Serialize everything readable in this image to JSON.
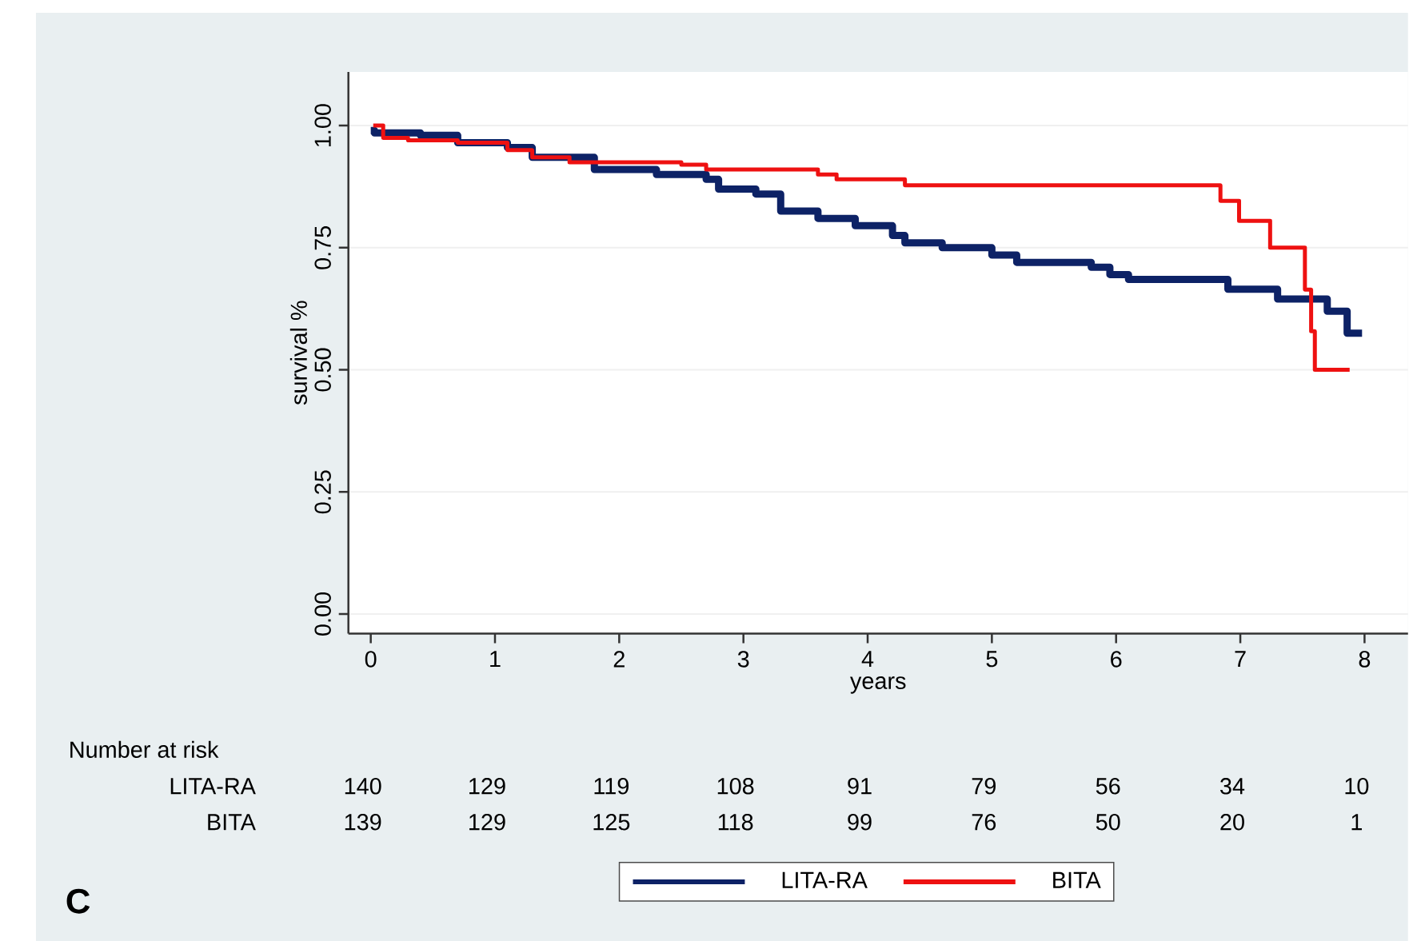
{
  "chart_data": {
    "type": "step",
    "xlabel": "years",
    "ylabel": "survival %",
    "xlim": [
      -0.18,
      8.35
    ],
    "ylim": [
      -0.04,
      1.11
    ],
    "xticks": [
      0,
      1,
      2,
      3,
      4,
      5,
      6,
      7,
      8
    ],
    "yticks": [
      {
        "value": 0,
        "label": "0.00"
      },
      {
        "value": 0.25,
        "label": "0.25"
      },
      {
        "value": 0.5,
        "label": "0.50"
      },
      {
        "value": 0.75,
        "label": "0.75"
      },
      {
        "value": 1,
        "label": "1.00"
      }
    ],
    "grid": "y",
    "legend": "bottom",
    "series": [
      {
        "name": "LITA-RA",
        "color": "#0d2266",
        "x": [
          0,
          0.03,
          0.4,
          0.7,
          1.1,
          1.3,
          1.8,
          2.3,
          2.7,
          2.8,
          3.1,
          3.3,
          3.6,
          3.9,
          4.2,
          4.3,
          4.6,
          5.0,
          5.2,
          5.8,
          5.95,
          6.1,
          6.9,
          7.3,
          7.7,
          7.86,
          7.98
        ],
        "values": [
          0.99,
          0.985,
          0.98,
          0.965,
          0.955,
          0.935,
          0.91,
          0.9,
          0.89,
          0.87,
          0.86,
          0.825,
          0.81,
          0.795,
          0.775,
          0.76,
          0.75,
          0.735,
          0.72,
          0.71,
          0.695,
          0.685,
          0.665,
          0.645,
          0.62,
          0.575,
          0.575
        ]
      },
      {
        "name": "BITA",
        "color": "#ee1111",
        "x": [
          0.02,
          0.1,
          0.3,
          0.7,
          1.1,
          1.3,
          1.6,
          2.5,
          2.7,
          3.6,
          3.75,
          4.3,
          6.84,
          6.99,
          7.24,
          7.52,
          7.57,
          7.6,
          7.88
        ],
        "values": [
          1.0,
          0.975,
          0.97,
          0.965,
          0.95,
          0.935,
          0.925,
          0.92,
          0.91,
          0.9,
          0.89,
          0.878,
          0.846,
          0.805,
          0.75,
          0.664,
          0.579,
          0.5,
          0.5
        ]
      }
    ],
    "annotations": [
      "Number at risk",
      "LITA-RA",
      "140",
      "129",
      "119",
      "108",
      "91",
      "79",
      "56",
      "34",
      "10",
      "BITA",
      "139",
      "129",
      "125",
      "118",
      "99",
      "76",
      "50",
      "20",
      "1",
      "C"
    ]
  }
}
